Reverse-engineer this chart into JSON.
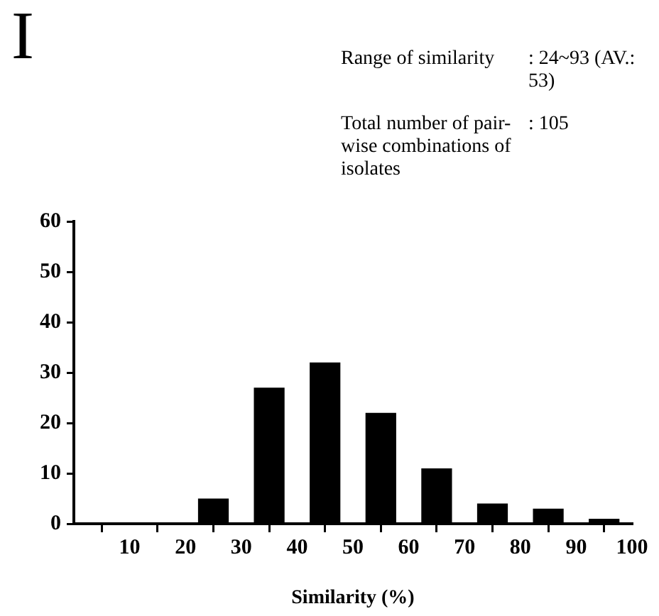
{
  "chart_data": {
    "type": "histogram",
    "title": "I",
    "xlabel": "Similarity (%)",
    "annotations": [
      "Range of similarity",
      ": 24~93 (AV.: 53)",
      "Total number of pair-wise combinations of isolates",
      ": 105"
    ],
    "bins": [
      0,
      10,
      20,
      30,
      40,
      50,
      60,
      70,
      80,
      90,
      100
    ],
    "values": [
      0,
      0,
      5,
      27,
      32,
      22,
      11,
      4,
      3,
      1
    ],
    "color": "#000000",
    "xlim": [
      0,
      100
    ],
    "xticks": [
      10,
      20,
      30,
      40,
      50,
      60,
      70,
      80,
      90,
      100
    ],
    "ylim": [
      0,
      60
    ],
    "yticks": [
      0,
      10,
      20,
      30,
      40,
      50,
      60
    ],
    "grid": false,
    "legend": false
  }
}
